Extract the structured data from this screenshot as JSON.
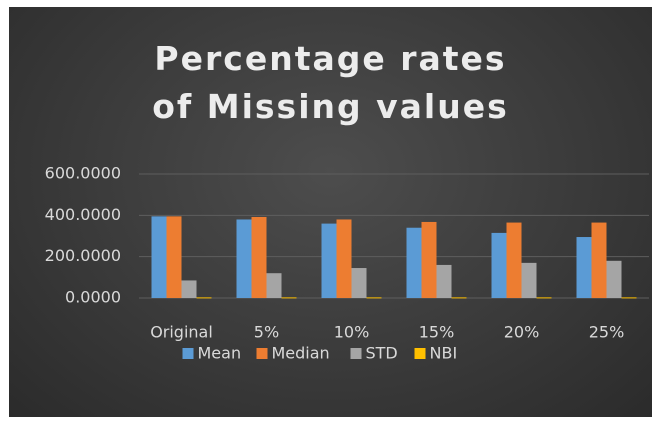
{
  "chart_data": {
    "type": "bar",
    "title": "Percentage rates of Missing values",
    "categories": [
      "Original",
      "5%",
      "10%",
      "15%",
      "20%",
      "25%"
    ],
    "series": [
      {
        "name": "Mean",
        "color": "#5b9bd5",
        "values": [
          395,
          380,
          360,
          340,
          315,
          295
        ]
      },
      {
        "name": "Median",
        "color": "#ed7d31",
        "values": [
          395,
          392,
          380,
          368,
          365,
          365
        ]
      },
      {
        "name": "STD",
        "color": "#a5a5a5",
        "values": [
          85,
          120,
          145,
          160,
          170,
          180
        ]
      },
      {
        "name": "NBI",
        "color": "#ffc000",
        "values": [
          3,
          3,
          3,
          3,
          3,
          3
        ]
      }
    ],
    "ylim": [
      0,
      600
    ],
    "yticks": [
      {
        "value": 0,
        "label": "0.0000"
      },
      {
        "value": 200,
        "label": "200.0000"
      },
      {
        "value": 400,
        "label": "400.0000"
      },
      {
        "value": 600,
        "label": "600.0000"
      }
    ],
    "grid": true,
    "legend": "bottom"
  }
}
